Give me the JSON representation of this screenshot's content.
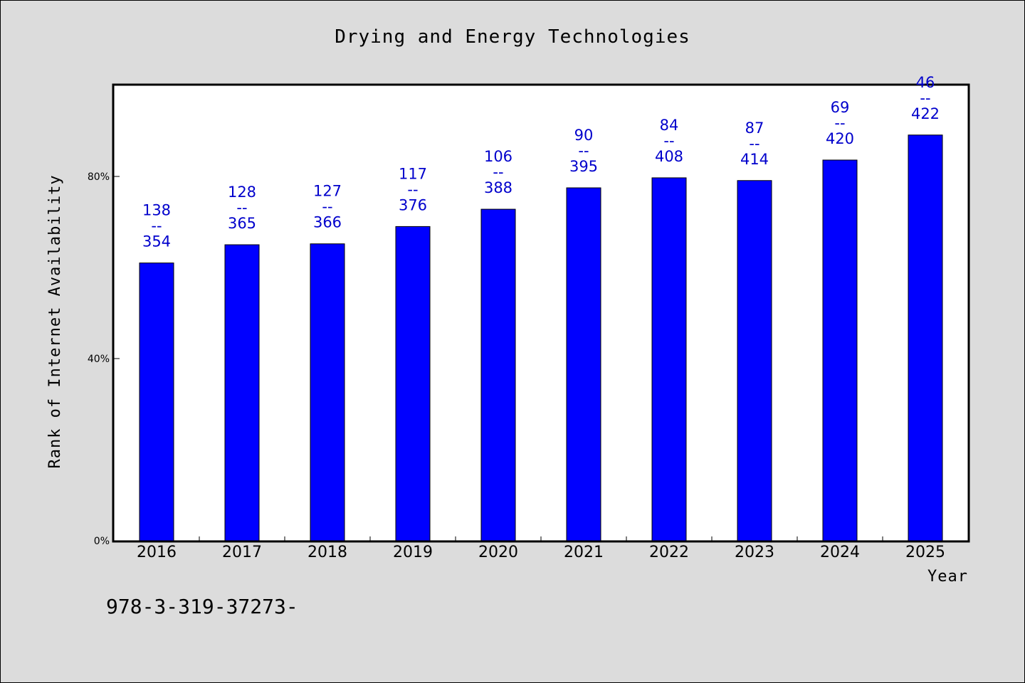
{
  "chart_data": {
    "type": "bar",
    "title": "Drying and Energy Technologies",
    "xlabel": "Year",
    "ylabel": "Rank of Internet Availability",
    "categories": [
      "2016",
      "2017",
      "2018",
      "2019",
      "2020",
      "2021",
      "2022",
      "2023",
      "2024",
      "2025"
    ],
    "values": [
      61,
      65,
      65.2,
      69,
      72.8,
      77.5,
      79.7,
      79.1,
      83.6,
      89.1
    ],
    "value_unit": "%",
    "data_labels": [
      {
        "top": "138",
        "sep": "--",
        "bottom": "354"
      },
      {
        "top": "128",
        "sep": "--",
        "bottom": "365"
      },
      {
        "top": "127",
        "sep": "--",
        "bottom": "366"
      },
      {
        "top": "117",
        "sep": "--",
        "bottom": "376"
      },
      {
        "top": "106",
        "sep": "--",
        "bottom": "388"
      },
      {
        "top": "90",
        "sep": "--",
        "bottom": "395"
      },
      {
        "top": "84",
        "sep": "--",
        "bottom": "408"
      },
      {
        "top": "87",
        "sep": "--",
        "bottom": "414"
      },
      {
        "top": "69",
        "sep": "--",
        "bottom": "420"
      },
      {
        "top": "46",
        "sep": "--",
        "bottom": "422"
      }
    ],
    "yticks": [
      {
        "value": 0,
        "label": "0%"
      },
      {
        "value": 40,
        "label": "40%"
      },
      {
        "value": 80,
        "label": "80%"
      }
    ],
    "ylim": [
      0,
      100
    ],
    "grid": false,
    "legend": "none",
    "colors": {
      "bar": "#0000ff",
      "data_label": "#0000cc",
      "plot_bg": "#ffffff",
      "page_bg": "#dcdcdc"
    }
  },
  "footer": {
    "text": "978-3-319-37273-"
  }
}
